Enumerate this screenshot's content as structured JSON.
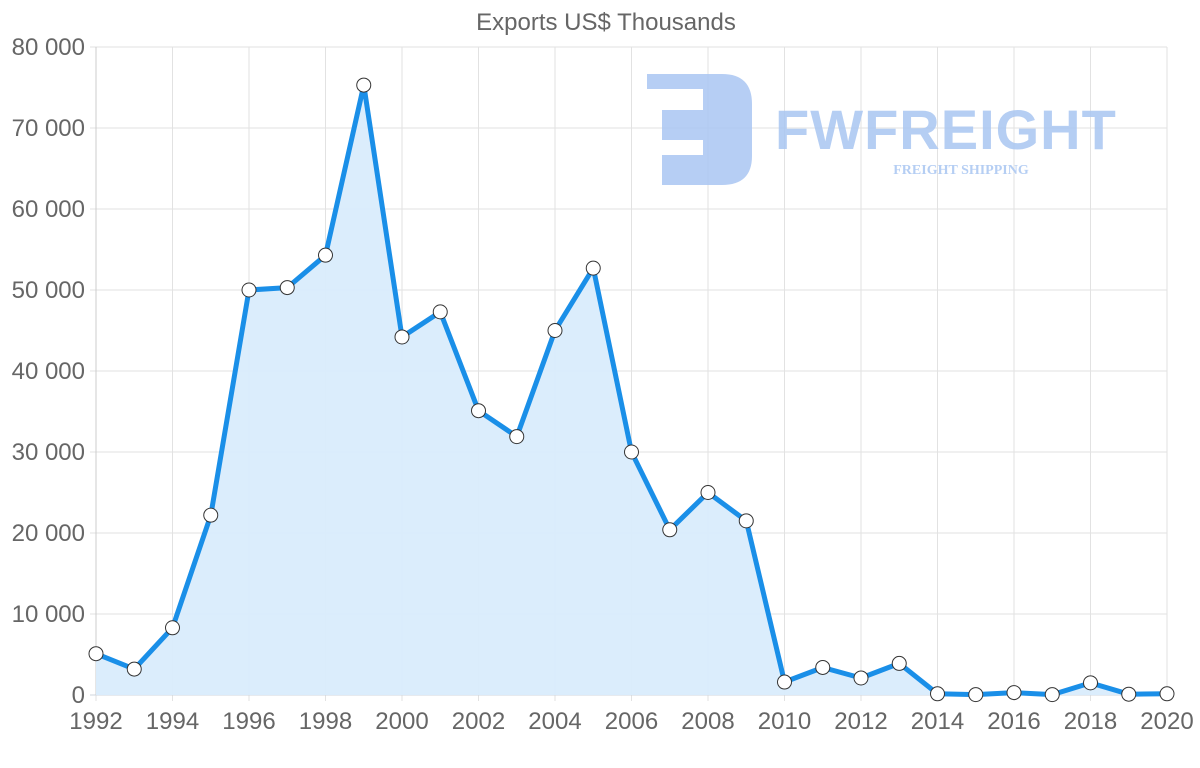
{
  "chart_data": {
    "type": "area",
    "title": "Exports US$ Thousands",
    "xlabel": "",
    "ylabel": "",
    "x": [
      1992,
      1993,
      1994,
      1995,
      1996,
      1997,
      1998,
      1999,
      2000,
      2001,
      2002,
      2003,
      2004,
      2005,
      2006,
      2007,
      2008,
      2009,
      2010,
      2011,
      2012,
      2013,
      2014,
      2015,
      2016,
      2017,
      2018,
      2019,
      2020
    ],
    "series": [
      {
        "name": "Exports",
        "values": [
          5100,
          3200,
          8300,
          22200,
          50000,
          50300,
          54300,
          75300,
          44200,
          47300,
          35100,
          31900,
          45000,
          52700,
          30000,
          20400,
          25000,
          21500,
          1600,
          3400,
          2100,
          3900,
          150,
          50,
          300,
          50,
          1500,
          100,
          150
        ]
      }
    ],
    "ylim": [
      0,
      80000
    ],
    "xlim": [
      1992,
      2020
    ],
    "y_ticks": [
      0,
      10000,
      20000,
      30000,
      40000,
      50000,
      60000,
      70000,
      80000
    ],
    "y_tick_labels": [
      "0",
      "10 000",
      "20 000",
      "30 000",
      "40 000",
      "50 000",
      "60 000",
      "70 000",
      "80 000"
    ],
    "x_tick_labels": [
      "1992",
      "1994",
      "1996",
      "1998",
      "2000",
      "2002",
      "2004",
      "2006",
      "2008",
      "2010",
      "2012",
      "2014",
      "2016",
      "2018",
      "2020"
    ],
    "grid": true,
    "legend": "none",
    "colors": {
      "line": "#1a8fe8",
      "fill": "#d9ecfc",
      "grid": "#e2e2e2",
      "text": "#666666",
      "marker_fill": "#ffffff",
      "marker_stroke": "#333333"
    }
  },
  "watermark": {
    "brand": "FWFREIGHT",
    "tagline": "FREIGHT SHIPPING",
    "color": "#a9c6f2"
  }
}
